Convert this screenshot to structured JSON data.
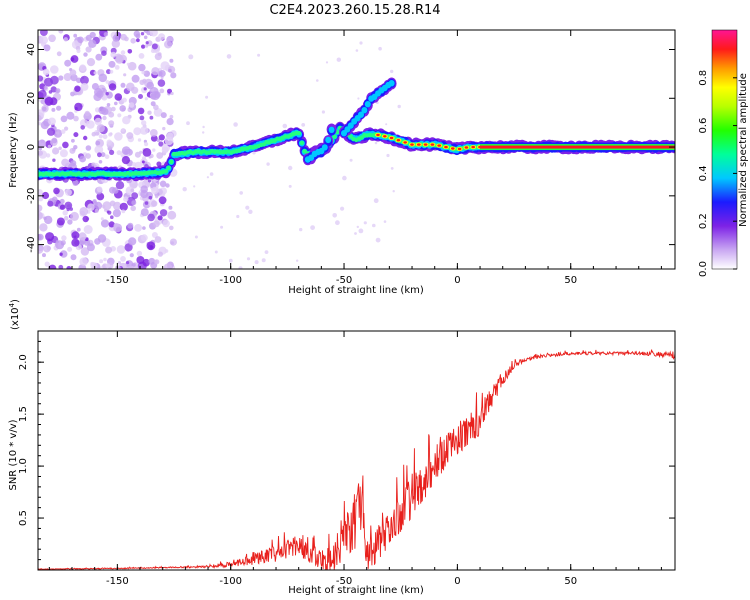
{
  "title": "C2E4.2023.260.15.28.R14",
  "chart_data": [
    {
      "type": "heatmap",
      "name": "spectrogram",
      "xlabel": "Height of straight line (km)",
      "ylabel": "Frequency (Hz)",
      "xlim": [
        -185,
        96
      ],
      "ylim": [
        -50,
        48
      ],
      "xticks": [
        -150,
        -100,
        -50,
        0,
        50
      ],
      "yticks": [
        -40,
        -20,
        0,
        20,
        40
      ],
      "xtick_labels": [
        "-150",
        "-100",
        "-50",
        "0",
        "50"
      ],
      "ytick_labels": [
        "-40",
        "-20",
        "0",
        "20",
        "40"
      ],
      "colorbar": {
        "label": "Normalized spectral amplitude",
        "range": [
          0,
          1
        ],
        "ticks": [
          0.0,
          0.2,
          0.4,
          0.6,
          0.8
        ],
        "tick_labels": [
          "0.0",
          "0.2",
          "0.4",
          "0.6",
          "0.8"
        ]
      },
      "trace": {
        "x": [
          -185,
          -160,
          -140,
          -128,
          -125,
          -115,
          -100,
          -90,
          -80,
          -70,
          -67,
          -60,
          -55,
          -52,
          -48,
          -45,
          -40,
          -35,
          -30,
          -20,
          -10,
          -5,
          0,
          5,
          10,
          30,
          50,
          96
        ],
        "y": [
          -11,
          -11,
          -11,
          -10,
          -3,
          -2,
          -2,
          0,
          3,
          6,
          -3,
          -2,
          3,
          8,
          5,
          3,
          5,
          5,
          4,
          1,
          1,
          0,
          -1,
          0,
          0,
          0,
          0,
          0
        ]
      },
      "branches": [
        {
          "x": [
            -66,
            -58,
            -55
          ],
          "y": [
            -5,
            0,
            8
          ]
        },
        {
          "x": [
            -50,
            -42,
            -38,
            -32,
            -28
          ],
          "y": [
            6,
            14,
            20,
            24,
            27
          ]
        }
      ]
    },
    {
      "type": "line",
      "name": "snr",
      "xlabel": "Height of straight line (km)",
      "ylabel": "SNR (10 * v/v)",
      "scale_label": "(x10",
      "scale_exp": "4",
      "scale_close": ")",
      "xlim": [
        -185,
        96
      ],
      "ylim": [
        0,
        2.3
      ],
      "xticks": [
        -150,
        -100,
        -50,
        0,
        50
      ],
      "yticks": [
        0.5,
        1.0,
        1.5,
        2.0
      ],
      "xtick_labels": [
        "-150",
        "-100",
        "-50",
        "0",
        "50"
      ],
      "ytick_labels": [
        "0.5",
        "1.0",
        "1.5",
        "2.0"
      ],
      "series": [
        {
          "name": "SNR",
          "color": "#e8201c",
          "envelope_x": [
            -185,
            -150,
            -125,
            -110,
            -100,
            -90,
            -80,
            -70,
            -60,
            -55,
            -50,
            -45,
            -42,
            -40,
            -35,
            -30,
            -25,
            -20,
            -15,
            -10,
            -5,
            0,
            5,
            10,
            15,
            20,
            25,
            30,
            40,
            50,
            60,
            70,
            80,
            90,
            96
          ],
          "envelope_y": [
            0.01,
            0.02,
            0.03,
            0.04,
            0.08,
            0.15,
            0.25,
            0.32,
            0.2,
            0.22,
            0.55,
            0.7,
            1.0,
            0.3,
            0.4,
            0.55,
            0.75,
            0.95,
            1.05,
            1.15,
            1.3,
            1.4,
            1.5,
            1.6,
            1.75,
            1.9,
            2.0,
            2.05,
            2.08,
            2.1,
            2.1,
            2.1,
            2.1,
            2.1,
            2.1
          ],
          "noise_y": [
            0.005,
            0.01,
            0.01,
            0.02,
            0.05,
            0.1,
            0.18,
            0.18,
            0.2,
            0.25,
            0.45,
            0.5,
            0.6,
            0.3,
            0.35,
            0.35,
            0.4,
            0.45,
            0.4,
            0.35,
            0.3,
            0.3,
            0.3,
            0.3,
            0.2,
            0.12,
            0.06,
            0.04,
            0.03,
            0.03,
            0.03,
            0.03,
            0.03,
            0.05,
            0.07
          ]
        }
      ]
    }
  ]
}
